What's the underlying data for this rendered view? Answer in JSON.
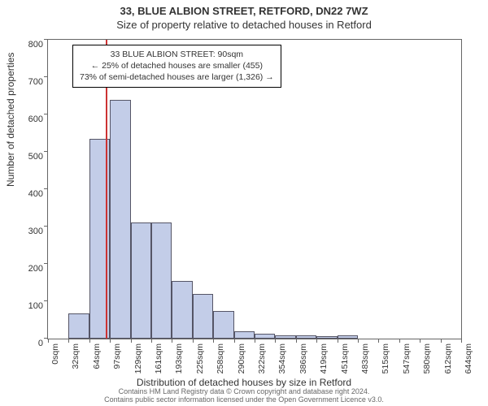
{
  "titles": {
    "main": "33, BLUE ALBION STREET, RETFORD, DN22 7WZ",
    "sub": "Size of property relative to detached houses in Retford"
  },
  "axes": {
    "ylabel": "Number of detached properties",
    "xlabel": "Distribution of detached houses by size in Retford",
    "ylim": [
      0,
      800
    ],
    "yticks": [
      0,
      100,
      200,
      300,
      400,
      500,
      600,
      700,
      800
    ],
    "xticks_labels": [
      "0sqm",
      "32sqm",
      "64sqm",
      "97sqm",
      "129sqm",
      "161sqm",
      "193sqm",
      "225sqm",
      "258sqm",
      "290sqm",
      "322sqm",
      "354sqm",
      "386sqm",
      "419sqm",
      "451sqm",
      "483sqm",
      "515sqm",
      "547sqm",
      "580sqm",
      "612sqm",
      "644sqm"
    ]
  },
  "chart": {
    "type": "histogram",
    "bar_fill": "#c3cde8",
    "bar_stroke": "#555566",
    "background_color": "#ffffff",
    "border_color": "#666666",
    "bins": 20,
    "values": [
      0,
      68,
      535,
      640,
      310,
      310,
      155,
      120,
      75,
      20,
      12,
      8,
      8,
      6,
      8,
      0,
      0,
      0,
      0,
      0
    ]
  },
  "marker": {
    "value_sqm": 90,
    "color": "#cc3333"
  },
  "info_box": {
    "line1": "33 BLUE ALBION STREET: 90sqm",
    "line2": "← 25% of detached houses are smaller (455)",
    "line3": "73% of semi-detached houses are larger (1,326) →"
  },
  "footer": {
    "line1": "Contains HM Land Registry data © Crown copyright and database right 2024.",
    "line2": "Contains public sector information licensed under the Open Government Licence v3.0."
  },
  "style": {
    "title_fontsize": 13,
    "axis_label_fontsize": 12,
    "tick_fontsize": 11,
    "footer_fontsize": 9
  }
}
